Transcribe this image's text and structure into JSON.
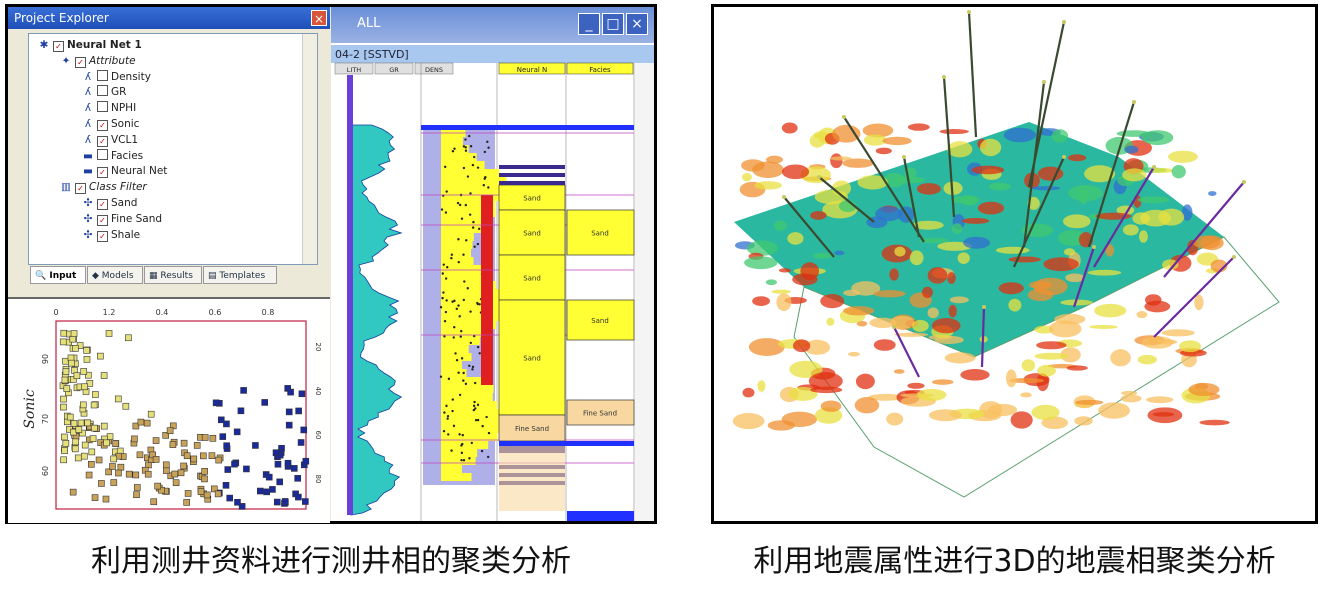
{
  "explorer": {
    "title": "Project Explorer",
    "close_label": "×",
    "tree": [
      {
        "label": "Neural Net 1",
        "level": 0,
        "checked": true,
        "icon": "neural-net-icon"
      },
      {
        "label": "Attribute",
        "level": 1,
        "checked": true,
        "icon": "attribute-icon"
      },
      {
        "label": "Density",
        "level": 2,
        "checked": false,
        "icon": "log-curve-icon"
      },
      {
        "label": "GR",
        "level": 2,
        "checked": false,
        "icon": "log-curve-icon"
      },
      {
        "label": "NPHI",
        "level": 2,
        "checked": false,
        "icon": "log-curve-icon"
      },
      {
        "label": "Sonic",
        "level": 2,
        "checked": true,
        "icon": "log-curve-icon"
      },
      {
        "label": "VCL1",
        "level": 2,
        "checked": true,
        "icon": "log-curve-icon"
      },
      {
        "label": "Facies",
        "level": 2,
        "checked": false,
        "icon": "facies-icon"
      },
      {
        "label": "Neural Net",
        "level": 2,
        "checked": true,
        "icon": "facies-icon"
      },
      {
        "label": "Class Filter",
        "level": 1,
        "checked": true,
        "icon": "filter-icon"
      },
      {
        "label": "Sand",
        "level": 2,
        "checked": true,
        "icon": "class-icon"
      },
      {
        "label": "Fine Sand",
        "level": 2,
        "checked": true,
        "icon": "class-icon"
      },
      {
        "label": "Shale",
        "level": 2,
        "checked": true,
        "icon": "class-icon"
      }
    ],
    "tabs": [
      {
        "label": "Input",
        "active": true,
        "icon": "input-icon"
      },
      {
        "label": "Models",
        "active": false,
        "icon": "models-icon"
      },
      {
        "label": "Results",
        "active": false,
        "icon": "results-icon"
      },
      {
        "label": "Templates",
        "active": false,
        "icon": "templates-icon"
      }
    ]
  },
  "crossplot": {
    "ylabel": "Sonic",
    "x_ticks": [
      "0",
      "1.2",
      "0.4",
      "0.6",
      "0.8"
    ],
    "y_ticks": [
      "90",
      "70",
      "60"
    ],
    "right_ticks": [
      "20",
      "40",
      "60",
      "80"
    ],
    "colors": {
      "sand": "#e6e07a",
      "fine_sand": "#c9a25a",
      "shale": "#1a2a9a"
    }
  },
  "log_window": {
    "title": "ALL",
    "well_label": "04-2 [SSTVD]",
    "track_headers": [
      "Neural N",
      "Facies"
    ],
    "left_track_headers": [
      "LITH",
      "GR",
      "DENS"
    ],
    "neural_classes": [
      {
        "label": "Sand"
      },
      {
        "label": "Sand"
      },
      {
        "label": "Sand"
      },
      {
        "label": "Sand"
      },
      {
        "label": "Fine Sand"
      }
    ],
    "facies_classes": [
      {
        "label": "Sand"
      },
      {
        "label": "Sand"
      },
      {
        "label": "Fine Sand"
      }
    ],
    "colors": {
      "sand": "#ffff33",
      "fine_sand": "#f8d8a0",
      "shale": "#3a2a90",
      "line": "#2030ff"
    }
  },
  "seismic3d": {
    "colors": {
      "high": "#2ab8a0",
      "mid": "#e8e040",
      "low": "#f09030",
      "hot": "#e03010",
      "well": "#3a4a30",
      "well_purple": "#6a2aa0"
    }
  },
  "captions": {
    "left": "利用测井资料进行测井相的聚类分析",
    "right": "利用地震属性进行3D的地震相聚类分析"
  }
}
